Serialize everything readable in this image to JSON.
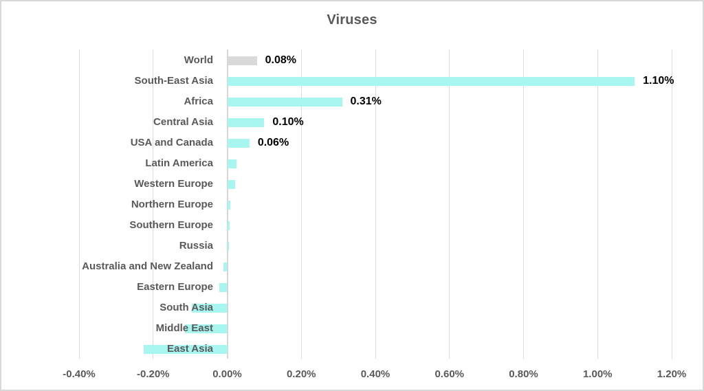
{
  "title": "Viruses",
  "colors": {
    "accent_cyan": "#a8f6f0",
    "neutral_gray_bar": "#d9d9d9",
    "gridline": "#d9d9d9",
    "axis_text": "#595959",
    "title_text": "#595959",
    "data_label_text": "#000000",
    "border": "#d8d8d8",
    "background": "#ffffff"
  },
  "chart_data": {
    "type": "bar",
    "orientation": "horizontal",
    "title": "Viruses",
    "categories": [
      "World",
      "South-East Asia",
      "Africa",
      "Central Asia",
      "USA and Canada",
      "Latin America",
      "Western Europe",
      "Northern Europe",
      "Southern Europe",
      "Russia",
      "Australia and New Zealand",
      "Eastern Europe",
      "South Asia",
      "Middle East",
      "East Asia"
    ],
    "values": [
      0.08,
      1.1,
      0.31,
      0.1,
      0.06,
      0.025,
      0.022,
      0.008,
      0.007,
      0.004,
      -0.011,
      -0.021,
      -0.095,
      -0.115,
      -0.225
    ],
    "data_labels": [
      "0.08%",
      "1.10%",
      "0.31%",
      "0.10%",
      "0.06%",
      "",
      "",
      "",
      "",
      "",
      "",
      "",
      "",
      "",
      ""
    ],
    "bar_colors": [
      "#d9d9d9",
      "#a8f6f0",
      "#a8f6f0",
      "#a8f6f0",
      "#a8f6f0",
      "#a8f6f0",
      "#a8f6f0",
      "#a8f6f0",
      "#a8f6f0",
      "#a8f6f0",
      "#a8f6f0",
      "#a8f6f0",
      "#a8f6f0",
      "#a8f6f0",
      "#a8f6f0"
    ],
    "x_tick_labels": [
      "-0.40%",
      "-0.20%",
      "0.00%",
      "0.20%",
      "0.40%",
      "0.60%",
      "0.80%",
      "1.00%",
      "1.20%"
    ],
    "x_tick_values": [
      -0.4,
      -0.2,
      0.0,
      0.2,
      0.4,
      0.6,
      0.8,
      1.0,
      1.2
    ],
    "xlim": [
      -0.4,
      1.2
    ],
    "grid": true,
    "legend": false,
    "unit": "percent"
  }
}
